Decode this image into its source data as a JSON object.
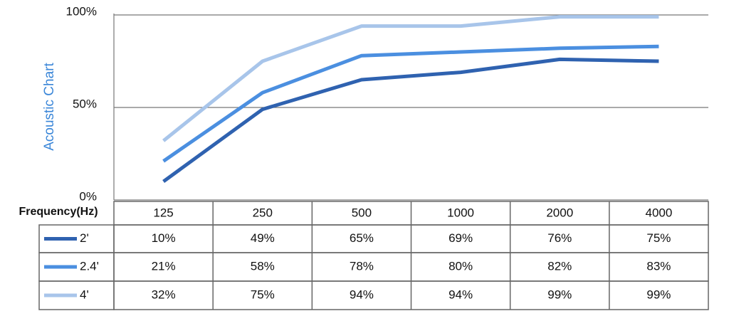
{
  "chart_data": {
    "type": "line",
    "y_label": "Acoustic Chart",
    "x_label": "Frequency(Hz)",
    "categories": [
      "125",
      "250",
      "500",
      "1000",
      "2000",
      "4000"
    ],
    "ylim": [
      0,
      100
    ],
    "yticks": [
      {
        "value": 0,
        "label": "0%"
      },
      {
        "value": 50,
        "label": "50%"
      },
      {
        "value": 100,
        "label": "100%"
      }
    ],
    "grid": true,
    "series": [
      {
        "name": "2'",
        "color": "#2f62b0",
        "values": [
          10,
          49,
          65,
          69,
          76,
          75
        ],
        "value_labels": [
          "10%",
          "49%",
          "65%",
          "69%",
          "76%",
          "75%"
        ]
      },
      {
        "name": "2.4'",
        "color": "#4b8fe0",
        "values": [
          21,
          58,
          78,
          80,
          82,
          83
        ],
        "value_labels": [
          "21%",
          "58%",
          "78%",
          "80%",
          "82%",
          "83%"
        ]
      },
      {
        "name": "4'",
        "color": "#a8c5ea",
        "values": [
          32,
          75,
          94,
          94,
          99,
          99
        ],
        "value_labels": [
          "32%",
          "75%",
          "94%",
          "94%",
          "99%",
          "99%"
        ]
      }
    ]
  }
}
